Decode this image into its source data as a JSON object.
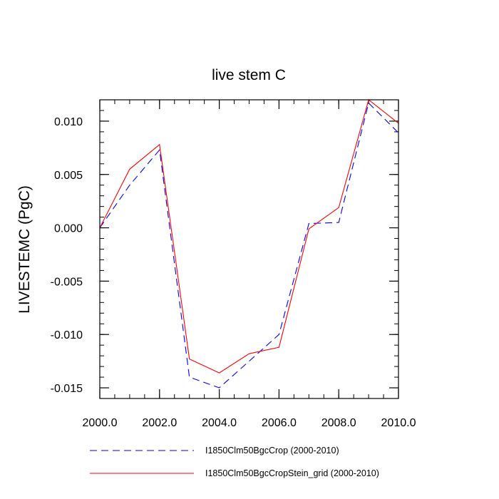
{
  "chart_data": {
    "type": "line",
    "title": "live stem C",
    "xlabel": "",
    "ylabel": "LIVESTEMC  (PgC)",
    "xlim": [
      2000,
      2010
    ],
    "ylim": [
      -0.016,
      0.012
    ],
    "xticks": [
      2000,
      2002,
      2004,
      2006,
      2008,
      2010
    ],
    "xtick_labels": [
      "2000.0",
      "2002.0",
      "2004.0",
      "2006.0",
      "2008.0",
      "2010.0"
    ],
    "yticks": [
      0.01,
      0.005,
      0.0,
      -0.005,
      -0.01,
      -0.015
    ],
    "ytick_labels": [
      "0.010",
      "0.005",
      "0.000",
      "-0.005",
      "-0.010",
      "-0.015"
    ],
    "grid": false,
    "legend_position": "bottom",
    "x": [
      2000,
      2001,
      2002,
      2003,
      2004,
      2005,
      2006,
      2007,
      2008,
      2009,
      2010
    ],
    "series": [
      {
        "name": "I1850Clm50BgcCrop (2000-2010)",
        "color": "#0000ff",
        "style": "dashed",
        "values": [
          0.0,
          0.004,
          0.0073,
          -0.014,
          -0.015,
          -0.0125,
          -0.01,
          0.0004,
          0.0005,
          0.0117,
          0.0089
        ]
      },
      {
        "name": "I1850Clm50BgcCropStein_grid (2000-2010)",
        "color": "#ff0000",
        "style": "solid",
        "values": [
          0.0,
          0.0055,
          0.0078,
          -0.0123,
          -0.0136,
          -0.0118,
          -0.0112,
          -0.0001,
          0.0019,
          0.012,
          0.0098
        ]
      }
    ]
  }
}
